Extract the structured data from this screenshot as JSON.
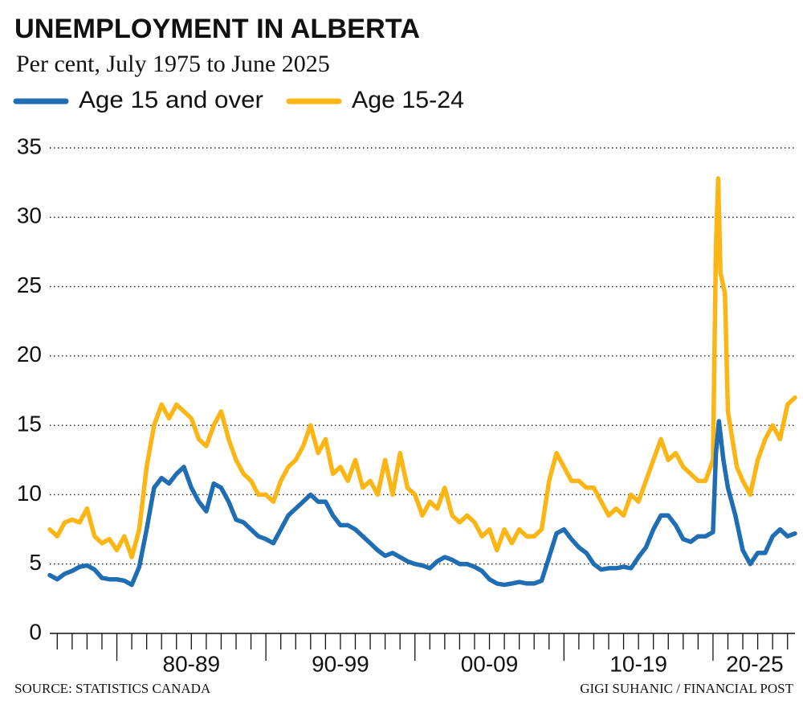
{
  "chart_data": {
    "type": "line",
    "title": "UNEMPLOYMENT IN ALBERTA",
    "subtitle": "Per cent, July 1975 to June 2025",
    "source": "SOURCE: STATISTICS CANADA",
    "credit": "GIGI SUHANIC / FINANCIAL POST",
    "series": [
      {
        "name": "Age 15 and over",
        "color": "#1f6db3",
        "x": [
          1975.5,
          1976,
          1976.5,
          1977,
          1977.5,
          1978,
          1978.5,
          1979,
          1979.5,
          1980,
          1980.5,
          1981,
          1981.5,
          1982,
          1982.5,
          1983,
          1983.5,
          1984,
          1984.5,
          1985,
          1985.5,
          1986,
          1986.5,
          1987,
          1987.5,
          1988,
          1988.5,
          1989,
          1989.5,
          1990,
          1990.5,
          1991,
          1991.5,
          1992,
          1992.5,
          1993,
          1993.5,
          1994,
          1994.5,
          1995,
          1995.5,
          1996,
          1996.5,
          1997,
          1997.5,
          1998,
          1998.5,
          1999,
          1999.5,
          2000,
          2000.5,
          2001,
          2001.5,
          2002,
          2002.5,
          2003,
          2003.5,
          2004,
          2004.5,
          2005,
          2005.5,
          2006,
          2006.5,
          2007,
          2007.5,
          2008,
          2008.5,
          2009,
          2009.5,
          2010,
          2010.5,
          2011,
          2011.5,
          2012,
          2012.5,
          2013,
          2013.5,
          2014,
          2014.5,
          2015,
          2015.5,
          2016,
          2016.5,
          2017,
          2017.5,
          2018,
          2018.5,
          2019,
          2019.5,
          2020,
          2020.2,
          2020.4,
          2020.7,
          2021,
          2021.5,
          2022,
          2022.5,
          2023,
          2023.5,
          2024,
          2024.5,
          2025,
          2025.5
        ],
        "values": [
          4.2,
          3.9,
          4.3,
          4.5,
          4.8,
          4.9,
          4.6,
          4.0,
          3.9,
          3.9,
          3.8,
          3.5,
          4.8,
          7.5,
          10.5,
          11.2,
          10.8,
          11.5,
          12.0,
          10.5,
          9.5,
          8.8,
          10.8,
          10.5,
          9.5,
          8.2,
          8.0,
          7.5,
          7.0,
          6.8,
          6.5,
          7.5,
          8.5,
          9.0,
          9.5,
          10.0,
          9.5,
          9.5,
          8.5,
          7.8,
          7.8,
          7.5,
          7.0,
          6.5,
          6.0,
          5.6,
          5.8,
          5.5,
          5.2,
          5.0,
          4.9,
          4.7,
          5.2,
          5.5,
          5.3,
          5.0,
          5.0,
          4.8,
          4.5,
          3.9,
          3.6,
          3.5,
          3.6,
          3.7,
          3.6,
          3.6,
          3.8,
          5.5,
          7.2,
          7.5,
          6.8,
          6.2,
          5.8,
          5.0,
          4.6,
          4.7,
          4.7,
          4.8,
          4.7,
          5.5,
          6.2,
          7.5,
          8.5,
          8.5,
          7.8,
          6.8,
          6.6,
          7.0,
          7.0,
          7.3,
          13.0,
          15.3,
          12.5,
          10.5,
          8.5,
          6.0,
          5.0,
          5.8,
          5.8,
          7.0,
          7.5,
          7.0,
          7.2
        ]
      },
      {
        "name": "Age 15-24",
        "color": "#fbb615",
        "x": [
          1975.5,
          1976,
          1976.5,
          1977,
          1977.5,
          1978,
          1978.5,
          1979,
          1979.5,
          1980,
          1980.5,
          1981,
          1981.5,
          1982,
          1982.5,
          1983,
          1983.5,
          1984,
          1984.5,
          1985,
          1985.5,
          1986,
          1986.5,
          1987,
          1987.5,
          1988,
          1988.5,
          1989,
          1989.5,
          1990,
          1990.5,
          1991,
          1991.5,
          1992,
          1992.5,
          1993,
          1993.5,
          1994,
          1994.5,
          1995,
          1995.5,
          1996,
          1996.5,
          1997,
          1997.5,
          1998,
          1998.5,
          1999,
          1999.5,
          2000,
          2000.5,
          2001,
          2001.5,
          2002,
          2002.5,
          2003,
          2003.5,
          2004,
          2004.5,
          2005,
          2005.5,
          2006,
          2006.5,
          2007,
          2007.5,
          2008,
          2008.5,
          2009,
          2009.5,
          2010,
          2010.5,
          2011,
          2011.5,
          2012,
          2012.5,
          2013,
          2013.5,
          2014,
          2014.5,
          2015,
          2015.5,
          2016,
          2016.5,
          2017,
          2017.5,
          2018,
          2018.5,
          2019,
          2019.5,
          2020,
          2020.2,
          2020.35,
          2020.5,
          2020.8,
          2021,
          2021.3,
          2021.6,
          2022,
          2022.5,
          2023,
          2023.5,
          2024,
          2024.5,
          2025,
          2025.5
        ],
        "values": [
          7.5,
          7.0,
          8.0,
          8.2,
          8.0,
          9.0,
          7.0,
          6.5,
          6.8,
          6.0,
          7.0,
          5.5,
          7.5,
          12.0,
          15.0,
          16.5,
          15.5,
          16.5,
          16.0,
          15.5,
          14.0,
          13.5,
          15.0,
          16.0,
          14.0,
          12.5,
          11.5,
          11.0,
          10.0,
          10.0,
          9.5,
          11.0,
          12.0,
          12.5,
          13.5,
          15.0,
          13.0,
          14.0,
          11.5,
          12.0,
          11.0,
          12.5,
          10.5,
          11.0,
          10.0,
          12.5,
          10.0,
          13.0,
          10.5,
          10.0,
          8.5,
          9.5,
          9.0,
          10.5,
          8.5,
          8.0,
          8.5,
          8.0,
          7.0,
          7.5,
          6.0,
          7.5,
          6.5,
          7.5,
          7.0,
          7.0,
          7.5,
          11.0,
          13.0,
          12.0,
          11.0,
          11.0,
          10.5,
          10.5,
          9.5,
          8.5,
          9.0,
          8.5,
          10.0,
          9.5,
          11.0,
          12.5,
          14.0,
          12.5,
          13.0,
          12.0,
          11.5,
          11.0,
          11.0,
          12.5,
          28.0,
          32.8,
          26.0,
          24.5,
          16.0,
          14.0,
          12.0,
          11.0,
          10.0,
          12.5,
          14.0,
          15.0,
          14.0,
          16.5,
          17.0
        ]
      }
    ],
    "xlim": [
      1975.5,
      2025.5
    ],
    "xticks": [
      1976,
      1977,
      1978,
      1979,
      1980,
      1981,
      1982,
      1983,
      1984,
      1985,
      1986,
      1987,
      1988,
      1989,
      1990,
      1991,
      1992,
      1993,
      1994,
      1995,
      1996,
      1997,
      1998,
      1999,
      2000,
      2001,
      2002,
      2003,
      2004,
      2005,
      2006,
      2007,
      2008,
      2009,
      2010,
      2011,
      2012,
      2013,
      2014,
      2015,
      2016,
      2017,
      2018,
      2019,
      2020,
      2021,
      2022,
      2023,
      2024,
      2025
    ],
    "xticks_major": [
      1980,
      1990,
      2000,
      2010,
      2020
    ],
    "xlabels": [
      {
        "value": 1985,
        "label": "80-89"
      },
      {
        "value": 1995,
        "label": "90-99"
      },
      {
        "value": 2005,
        "label": "00-09"
      },
      {
        "value": 2015,
        "label": "10-19"
      },
      {
        "value": 2022.8,
        "label": "20-25"
      }
    ],
    "ylim": [
      0,
      35
    ],
    "yticks": [
      0,
      5,
      10,
      15,
      20,
      25,
      30,
      35
    ],
    "grid": true
  }
}
